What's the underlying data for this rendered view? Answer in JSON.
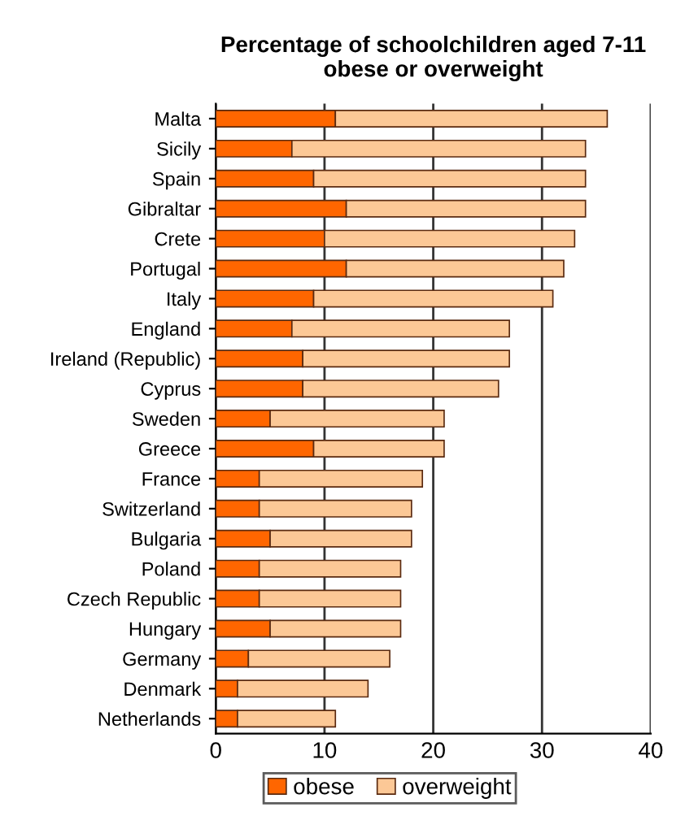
{
  "chart_data": {
    "type": "bar",
    "orientation": "horizontal",
    "stacked": true,
    "title": "Percentage of schoolchildren aged 7-11\nobese or overweight",
    "categories": [
      "Malta",
      "Sicily",
      "Spain",
      "Gibraltar",
      "Crete",
      "Portugal",
      "Italy",
      "England",
      "Ireland (Republic)",
      "Cyprus",
      "Sweden",
      "Greece",
      "France",
      "Switzerland",
      "Bulgaria",
      "Poland",
      "Czech Republic",
      "Hungary",
      "Germany",
      "Denmark",
      "Netherlands"
    ],
    "series": [
      {
        "name": "obese",
        "color": "#ff6600",
        "values": [
          11,
          7,
          9,
          12,
          10,
          12,
          9,
          7,
          8,
          8,
          5,
          9,
          4,
          4,
          5,
          4,
          4,
          5,
          3,
          2,
          2
        ]
      },
      {
        "name": "overweight",
        "color": "#fcc896",
        "values": [
          25,
          27,
          25,
          22,
          23,
          20,
          22,
          20,
          19,
          18,
          16,
          12,
          15,
          14,
          13,
          13,
          13,
          12,
          13,
          12,
          9
        ]
      }
    ],
    "xlim": [
      0,
      40
    ],
    "xticks": [
      0,
      10,
      20,
      30,
      40
    ],
    "grid": "x",
    "legend": "bottom"
  }
}
